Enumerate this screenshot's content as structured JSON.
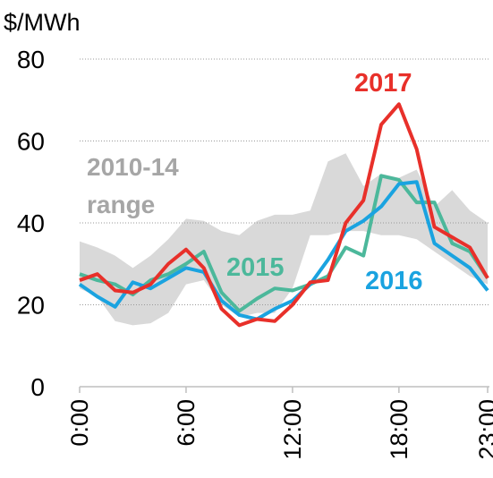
{
  "chart_data": {
    "type": "line",
    "y_axis_label": "$/MWh",
    "categories": [
      "0:00",
      null,
      null,
      null,
      null,
      null,
      "6:00",
      null,
      null,
      null,
      null,
      null,
      "12:00",
      null,
      null,
      null,
      null,
      null,
      "18:00",
      null,
      null,
      null,
      null,
      "23:00"
    ],
    "ylim": [
      0,
      80
    ],
    "yticks": [
      0,
      20,
      40,
      60,
      80
    ],
    "grid": true,
    "band": {
      "lines": [
        "2010-14",
        "range"
      ],
      "color": "#d9d9d9",
      "text_color": "#a6a6a6",
      "upper": [
        35.5,
        34,
        32,
        29,
        32,
        36,
        41,
        40.5,
        38,
        37,
        40.5,
        42,
        42,
        43,
        55,
        57,
        49,
        52,
        51,
        53,
        44,
        48,
        43,
        40
      ],
      "lower": [
        24,
        22,
        16,
        15,
        15.5,
        18,
        25,
        26,
        20,
        17,
        18,
        18,
        24,
        37,
        37,
        38,
        38,
        37,
        37,
        36,
        33,
        30,
        27,
        25
      ]
    },
    "series": [
      {
        "name": "2015",
        "color": "#4cb89b",
        "values": [
          27.5,
          26,
          25,
          22.5,
          26,
          27.5,
          30,
          33,
          23,
          18.5,
          21.5,
          24,
          23.5,
          25,
          27,
          34,
          32,
          51.5,
          50.5,
          45,
          45,
          35,
          33,
          26.5
        ]
      },
      {
        "name": "2016",
        "color": "#1aa3e0",
        "values": [
          25,
          22,
          19.5,
          25.5,
          24,
          26.5,
          29,
          28,
          21,
          17.5,
          16.5,
          19,
          21,
          25,
          31,
          38,
          40.5,
          44,
          49.5,
          50,
          35,
          32,
          29,
          23.5
        ]
      },
      {
        "name": "2017",
        "color": "#e8302a",
        "values": [
          26,
          27.5,
          23.5,
          23,
          25,
          30,
          33.5,
          29,
          19,
          15,
          16.5,
          16,
          20,
          25.5,
          26,
          40,
          45.5,
          64,
          69,
          58,
          39,
          36.5,
          34,
          26.5
        ]
      }
    ]
  }
}
